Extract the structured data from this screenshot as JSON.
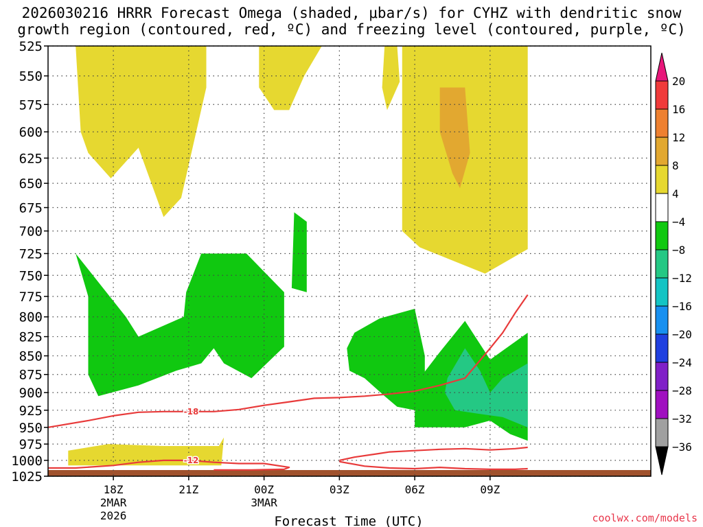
{
  "title_line1": "2026030216 HRRR Forecast Omega (shaded, μbar/s) for CYHZ with dendritic snow",
  "title_line2": "growth region (contoured, red, ºC) and freezing level (contoured, purple, ºC)",
  "credit": "coolwx.com/models",
  "chart_data": {
    "type": "time-height",
    "xlabel": "Forecast Time (UTC)",
    "x_range_hours": [
      -2.6,
      21.4
    ],
    "x_ticks": [
      {
        "hour": 0,
        "lines": [
          "18Z",
          "2MAR",
          "2026"
        ]
      },
      {
        "hour": 3,
        "lines": [
          "21Z"
        ]
      },
      {
        "hour": 6,
        "lines": [
          "00Z",
          "3MAR"
        ]
      },
      {
        "hour": 9,
        "lines": [
          "03Z"
        ]
      },
      {
        "hour": 12,
        "lines": [
          "06Z"
        ]
      },
      {
        "hour": 15,
        "lines": [
          "09Z"
        ]
      }
    ],
    "y_pressure_ticks": [
      525,
      550,
      575,
      600,
      625,
      650,
      675,
      700,
      725,
      750,
      775,
      800,
      825,
      850,
      875,
      900,
      925,
      950,
      975,
      1000,
      1025
    ],
    "grid": true,
    "colorbar": {
      "labels": [
        "20",
        "16",
        "12",
        "8",
        "4",
        "−4",
        "−8",
        "−12",
        "−16",
        "−20",
        "−24",
        "−28",
        "−32",
        "−36"
      ],
      "colors": [
        "#e8177a",
        "#f03a3a",
        "#ee8030",
        "#e2a830",
        "#e6d830",
        "#ffffff",
        "#10c810",
        "#24c884",
        "#14c4c4",
        "#1890f0",
        "#2040e0",
        "#8020c8",
        "#a010c0",
        "#a0a0a0",
        "#000000"
      ]
    },
    "shading": [
      {
        "level": "4 to 8",
        "color": "#e6d830",
        "polygons": [
          [
            [
              -1.5,
              525
            ],
            [
              -1.3,
              600
            ],
            [
              -1.0,
              620
            ],
            [
              -0.1,
              645
            ],
            [
              1.0,
              615
            ],
            [
              2.0,
              685
            ],
            [
              2.7,
              665
            ],
            [
              3.7,
              560
            ],
            [
              3.7,
              525
            ]
          ],
          [
            [
              5.8,
              525
            ],
            [
              5.8,
              560
            ],
            [
              6.4,
              580
            ],
            [
              7.0,
              580
            ],
            [
              7.6,
              550
            ],
            [
              8.3,
              525
            ]
          ],
          [
            [
              11.5,
              525
            ],
            [
              11.5,
              700
            ],
            [
              12.2,
              718
            ],
            [
              14.8,
              748
            ],
            [
              16.5,
              720
            ],
            [
              16.5,
              525
            ]
          ],
          [
            [
              10.8,
              525
            ],
            [
              10.7,
              560
            ],
            [
              10.9,
              580
            ],
            [
              11.4,
              555
            ],
            [
              11.3,
              525
            ]
          ],
          [
            [
              -1.8,
              985
            ],
            [
              -0.2,
              975
            ],
            [
              2.0,
              978
            ],
            [
              4.2,
              978
            ],
            [
              4.4,
              965
            ],
            [
              4.3,
              1008
            ],
            [
              -1.8,
              1008
            ]
          ]
        ]
      },
      {
        "level": "8 to 12",
        "color": "#e2a830",
        "polygons": [
          [
            [
              13.0,
              560
            ],
            [
              14.0,
              560
            ],
            [
              14.2,
              620
            ],
            [
              13.8,
              655
            ],
            [
              13.5,
              640
            ],
            [
              13.0,
              600
            ]
          ]
        ]
      },
      {
        "level": "-8 to -4",
        "color": "#10c810",
        "polygons": [
          [
            [
              -1.5,
              725
            ],
            [
              -1.0,
              775
            ],
            [
              -1.0,
              875
            ],
            [
              -0.6,
              905
            ],
            [
              1.0,
              890
            ],
            [
              2.5,
              870
            ],
            [
              3.5,
              860
            ],
            [
              4.0,
              840
            ],
            [
              4.4,
              860
            ],
            [
              5.5,
              880
            ],
            [
              6.8,
              838
            ],
            [
              6.8,
              770
            ],
            [
              5.3,
              725
            ],
            [
              3.5,
              725
            ],
            [
              2.9,
              770
            ],
            [
              2.8,
              800
            ],
            [
              1.0,
              825
            ],
            [
              0.5,
              800
            ],
            [
              -1.5,
              725
            ]
          ],
          [
            [
              7.7,
              770
            ],
            [
              7.7,
              690
            ],
            [
              7.2,
              680
            ],
            [
              7.1,
              765
            ]
          ],
          [
            [
              9.6,
              820
            ],
            [
              10.6,
              802
            ],
            [
              12.0,
              790
            ],
            [
              12.4,
              850
            ],
            [
              12.4,
              890
            ],
            [
              13.0,
              920
            ],
            [
              12.5,
              930
            ],
            [
              12.0,
              925
            ],
            [
              11.3,
              920
            ],
            [
              10.8,
              905
            ],
            [
              10.0,
              880
            ],
            [
              9.4,
              870
            ],
            [
              9.3,
              840
            ],
            [
              9.6,
              820
            ]
          ],
          [
            [
              12.0,
              930
            ],
            [
              12.2,
              880
            ],
            [
              13.0,
              845
            ],
            [
              14.0,
              805
            ],
            [
              15.0,
              855
            ],
            [
              16.5,
              820
            ],
            [
              16.5,
              970
            ],
            [
              15.8,
              960
            ],
            [
              15.0,
              940
            ],
            [
              14.0,
              950
            ],
            [
              12.0,
              950
            ]
          ]
        ]
      },
      {
        "level": "-12 to -8",
        "color": "#24c884",
        "polygons": [
          [
            [
              13.3,
              880
            ],
            [
              14.0,
              840
            ],
            [
              14.6,
              870
            ],
            [
              15.0,
              900
            ],
            [
              15.5,
              880
            ],
            [
              16.5,
              860
            ],
            [
              16.5,
              950
            ],
            [
              15.5,
              935
            ],
            [
              14.5,
              930
            ],
            [
              13.6,
              925
            ],
            [
              13.2,
              900
            ]
          ]
        ]
      }
    ],
    "surface_color": "#a0522d",
    "contours": [
      {
        "label": "-18",
        "color": "#e83a3a",
        "points": [
          [
            -2.6,
            950
          ],
          [
            -1.0,
            940
          ],
          [
            0.0,
            933
          ],
          [
            1.0,
            928
          ],
          [
            2.0,
            927
          ],
          [
            3.0,
            927
          ],
          [
            4.0,
            927
          ],
          [
            5.0,
            924
          ],
          [
            6.0,
            918
          ],
          [
            7.0,
            913
          ],
          [
            8.0,
            908
          ],
          [
            9.0,
            907
          ],
          [
            10.0,
            905
          ],
          [
            11.0,
            902
          ],
          [
            12.0,
            898
          ],
          [
            13.0,
            890
          ],
          [
            14.0,
            880
          ],
          [
            14.5,
            860
          ],
          [
            15.0,
            840
          ],
          [
            15.5,
            820
          ],
          [
            16.0,
            795
          ],
          [
            16.5,
            773
          ]
        ],
        "label_at": [
          3.1,
          927
        ]
      },
      {
        "label": "-12",
        "color": "#e83a3a",
        "points": [
          [
            -2.6,
            1012
          ],
          [
            -1.5,
            1012
          ],
          [
            0.0,
            1008
          ],
          [
            1.0,
            1003
          ],
          [
            2.0,
            1000
          ],
          [
            3.0,
            1000
          ],
          [
            4.0,
            1003
          ],
          [
            5.0,
            1005
          ],
          [
            6.0,
            1005
          ],
          [
            7.0,
            1011
          ],
          [
            6.8,
            1014
          ],
          [
            5.5,
            1015
          ],
          [
            4.6,
            1015
          ],
          [
            4.0,
            1015
          ]
        ],
        "label_at": [
          3.1,
          1000
        ]
      },
      {
        "label": "-12",
        "color": "#e83a3a",
        "points": [
          [
            9.0,
            1000
          ],
          [
            9.6,
            995
          ],
          [
            10.5,
            990
          ],
          [
            11.0,
            987
          ],
          [
            12.0,
            985
          ],
          [
            13.0,
            983
          ],
          [
            14.0,
            982
          ],
          [
            15.0,
            984
          ],
          [
            16.0,
            982
          ],
          [
            16.5,
            980
          ]
        ],
        "label_at": null
      },
      {
        "label": "-12",
        "color": "#e83a3a",
        "points": [
          [
            9.0,
            1002
          ],
          [
            10.0,
            1009
          ],
          [
            11.0,
            1012
          ],
          [
            12.0,
            1013
          ],
          [
            13.0,
            1011
          ],
          [
            14.0,
            1013
          ],
          [
            15.0,
            1014
          ],
          [
            16.0,
            1014
          ],
          [
            16.5,
            1013
          ]
        ],
        "label_at": null
      }
    ]
  }
}
